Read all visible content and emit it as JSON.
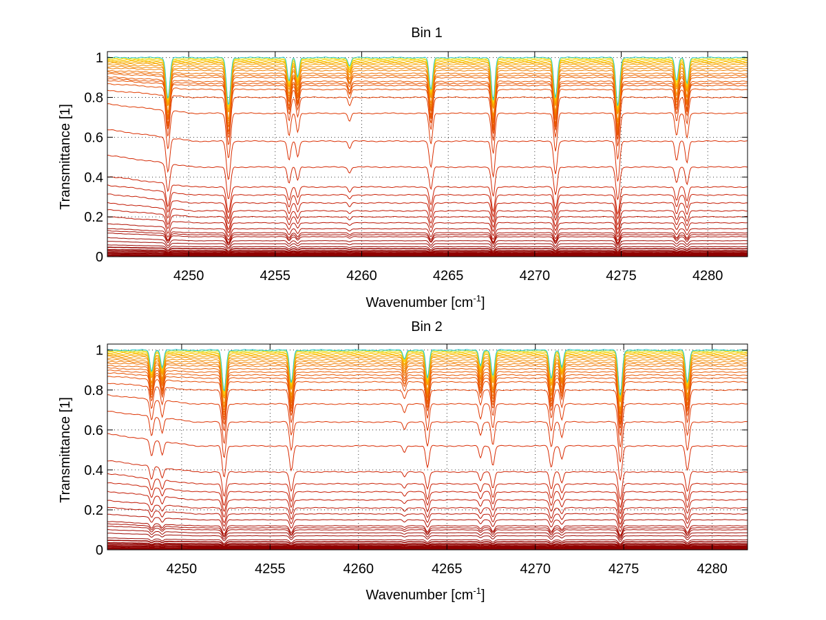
{
  "figure": {
    "background": "#ffffff"
  },
  "chart_data": [
    {
      "type": "line",
      "title": "Bin 1",
      "xlabel": "Wavenumber [cm",
      "xlabel_sup": "-1",
      "xlabel_close": "]",
      "ylabel": "Transmittance [1]",
      "xlim": [
        4245.3,
        4282.3
      ],
      "ylim": [
        0,
        1.03
      ],
      "xticks": [
        4250,
        4255,
        4260,
        4265,
        4270,
        4275,
        4280
      ],
      "xtick_labels": [
        "4250",
        "4255",
        "4260",
        "4265",
        "4270",
        "4275",
        "4280"
      ],
      "yticks": [
        0,
        0.2,
        0.4,
        0.6,
        0.8,
        1
      ],
      "ytick_labels": [
        "0",
        "0.2",
        "0.4",
        "0.6",
        "0.8",
        "1"
      ],
      "grid": true,
      "grid_style": "dotted",
      "colormap": "hot-to-jet (dark red for low transmittance, orange/yellow/cyan near 1)",
      "absorption_lines": [
        {
          "x": 4248.8,
          "depth": 0.38,
          "width": 0.15
        },
        {
          "x": 4252.3,
          "depth": 0.44,
          "width": 0.16
        },
        {
          "x": 4255.8,
          "depth": 0.22,
          "width": 0.13
        },
        {
          "x": 4256.3,
          "depth": 0.18,
          "width": 0.12
        },
        {
          "x": 4259.3,
          "depth": 0.08,
          "width": 0.12
        },
        {
          "x": 4264.0,
          "depth": 0.3,
          "width": 0.14
        },
        {
          "x": 4267.6,
          "depth": 0.4,
          "width": 0.14
        },
        {
          "x": 4271.2,
          "depth": 0.37,
          "width": 0.14
        },
        {
          "x": 4274.8,
          "depth": 0.45,
          "width": 0.15
        },
        {
          "x": 4278.2,
          "depth": 0.22,
          "width": 0.13
        },
        {
          "x": 4278.8,
          "depth": 0.24,
          "width": 0.13
        }
      ],
      "series_levels": [
        0.0,
        0.004,
        0.008,
        0.013,
        0.018,
        0.024,
        0.03,
        0.04,
        0.05,
        0.065,
        0.08,
        0.1,
        0.11,
        0.12,
        0.14,
        0.17,
        0.2,
        0.23,
        0.27,
        0.31,
        0.35,
        0.45,
        0.58,
        0.72,
        0.8,
        0.84,
        0.86,
        0.87,
        0.88,
        0.9,
        0.91,
        0.92,
        0.935,
        0.945,
        0.955,
        0.965,
        0.972,
        0.978,
        0.984,
        0.99,
        0.995,
        1.0
      ]
    },
    {
      "type": "line",
      "title": "Bin 2",
      "xlabel": "Wavenumber [cm",
      "xlabel_sup": "-1",
      "xlabel_close": "]",
      "ylabel": "Transmittance [1]",
      "xlim": [
        4245.8,
        4282.0
      ],
      "ylim": [
        0,
        1.03
      ],
      "xticks": [
        4250,
        4255,
        4260,
        4265,
        4270,
        4275,
        4280
      ],
      "xtick_labels": [
        "4250",
        "4255",
        "4260",
        "4265",
        "4270",
        "4275",
        "4280"
      ],
      "yticks": [
        0,
        0.2,
        0.4,
        0.6,
        0.8,
        1
      ],
      "ytick_labels": [
        "0",
        "0.2",
        "0.4",
        "0.6",
        "0.8",
        "1"
      ],
      "grid": true,
      "grid_style": "dotted",
      "colormap": "hot-to-jet (dark red for low transmittance, orange/yellow/cyan near 1)",
      "absorption_lines": [
        {
          "x": 4248.3,
          "depth": 0.2,
          "width": 0.13
        },
        {
          "x": 4248.9,
          "depth": 0.16,
          "width": 0.12
        },
        {
          "x": 4252.4,
          "depth": 0.38,
          "width": 0.15
        },
        {
          "x": 4256.2,
          "depth": 0.3,
          "width": 0.14
        },
        {
          "x": 4262.6,
          "depth": 0.08,
          "width": 0.12
        },
        {
          "x": 4263.9,
          "depth": 0.26,
          "width": 0.13
        },
        {
          "x": 4266.9,
          "depth": 0.14,
          "width": 0.12
        },
        {
          "x": 4267.6,
          "depth": 0.24,
          "width": 0.13
        },
        {
          "x": 4270.9,
          "depth": 0.26,
          "width": 0.14
        },
        {
          "x": 4271.5,
          "depth": 0.16,
          "width": 0.12
        },
        {
          "x": 4274.8,
          "depth": 0.42,
          "width": 0.15
        },
        {
          "x": 4278.6,
          "depth": 0.3,
          "width": 0.14
        }
      ],
      "series_levels": [
        0.0,
        0.004,
        0.008,
        0.013,
        0.018,
        0.024,
        0.03,
        0.04,
        0.05,
        0.07,
        0.085,
        0.1,
        0.11,
        0.12,
        0.15,
        0.18,
        0.21,
        0.25,
        0.29,
        0.33,
        0.39,
        0.52,
        0.64,
        0.73,
        0.8,
        0.84,
        0.86,
        0.875,
        0.89,
        0.905,
        0.92,
        0.93,
        0.94,
        0.95,
        0.96,
        0.968,
        0.975,
        0.982,
        0.988,
        0.993,
        0.997,
        1.0
      ]
    }
  ]
}
